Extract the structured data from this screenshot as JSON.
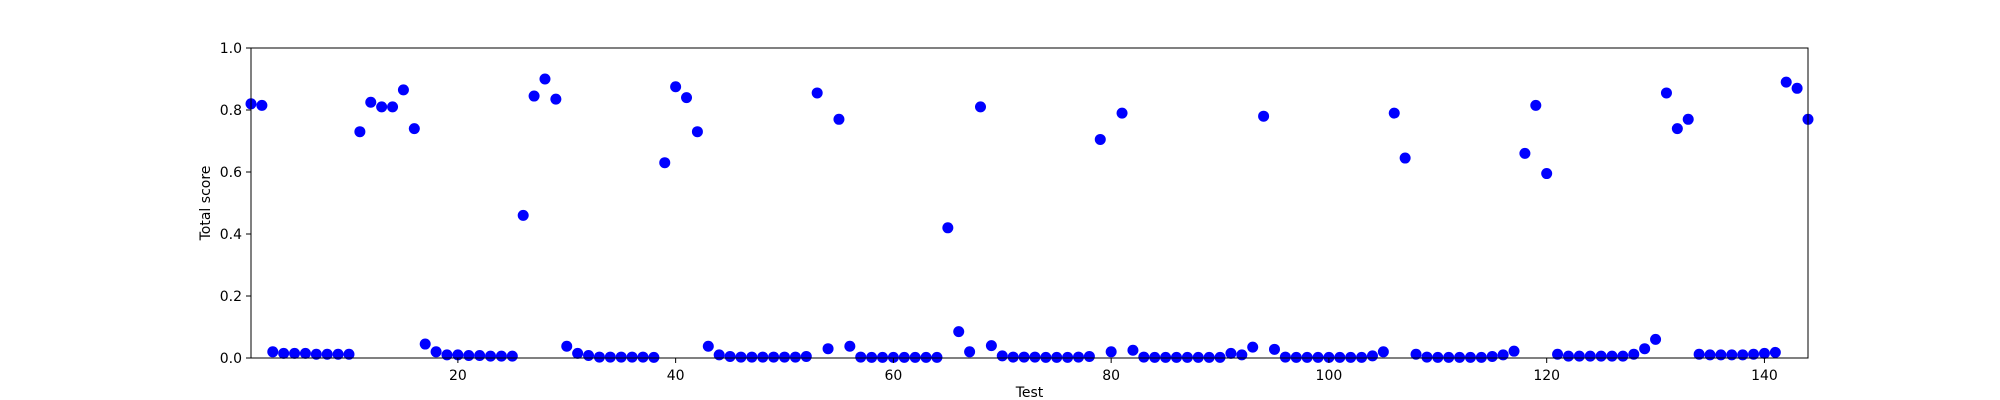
{
  "chart_data": {
    "type": "scatter",
    "xlabel": "Test",
    "ylabel": "Total score",
    "xlim": [
      1,
      144
    ],
    "ylim": [
      0.0,
      1.0
    ],
    "xticks": [
      20,
      40,
      60,
      80,
      100,
      120,
      140
    ],
    "xtick_labels": [
      "20",
      "40",
      "60",
      "80",
      "100",
      "120",
      "140"
    ],
    "yticks": [
      0.0,
      0.2,
      0.4,
      0.6,
      0.8,
      1.0
    ],
    "ytick_labels": [
      "0.0",
      "0.2",
      "0.4",
      "0.6",
      "0.8",
      "1.0"
    ],
    "grid": false,
    "series": [
      {
        "color": "#0000ff",
        "marker": "circle",
        "x": [
          1,
          2,
          3,
          4,
          5,
          6,
          7,
          8,
          9,
          10,
          11,
          12,
          13,
          14,
          15,
          16,
          17,
          18,
          19,
          20,
          21,
          22,
          23,
          24,
          25,
          26,
          27,
          28,
          29,
          30,
          31,
          32,
          33,
          34,
          35,
          36,
          37,
          38,
          39,
          40,
          41,
          42,
          43,
          44,
          45,
          46,
          47,
          48,
          49,
          50,
          51,
          52,
          53,
          54,
          55,
          56,
          57,
          58,
          59,
          60,
          61,
          62,
          63,
          64,
          65,
          66,
          67,
          68,
          69,
          70,
          71,
          72,
          73,
          74,
          75,
          76,
          77,
          78,
          79,
          80,
          81,
          82,
          83,
          84,
          85,
          86,
          87,
          88,
          89,
          90,
          91,
          92,
          93,
          94,
          95,
          96,
          97,
          98,
          99,
          100,
          101,
          102,
          103,
          104,
          105,
          106,
          107,
          108,
          109,
          110,
          111,
          112,
          113,
          114,
          115,
          116,
          117,
          118,
          119,
          120,
          121,
          122,
          123,
          124,
          125,
          126,
          127,
          128,
          129,
          130,
          131,
          132,
          133,
          134,
          135,
          136,
          137,
          138,
          139,
          140,
          141,
          142,
          143,
          144
        ],
        "y": [
          0.82,
          0.815,
          0.02,
          0.015,
          0.015,
          0.015,
          0.012,
          0.012,
          0.012,
          0.012,
          0.73,
          0.825,
          0.81,
          0.81,
          0.865,
          0.74,
          0.045,
          0.02,
          0.01,
          0.01,
          0.008,
          0.008,
          0.006,
          0.006,
          0.006,
          0.46,
          0.845,
          0.9,
          0.835,
          0.038,
          0.015,
          0.008,
          0.003,
          0.003,
          0.003,
          0.003,
          0.003,
          0.002,
          0.63,
          0.875,
          0.84,
          0.73,
          0.038,
          0.01,
          0.005,
          0.003,
          0.003,
          0.003,
          0.003,
          0.003,
          0.003,
          0.005,
          0.855,
          0.03,
          0.77,
          0.038,
          0.003,
          0.002,
          0.002,
          0.002,
          0.002,
          0.002,
          0.002,
          0.002,
          0.42,
          0.085,
          0.02,
          0.81,
          0.04,
          0.007,
          0.003,
          0.003,
          0.003,
          0.002,
          0.002,
          0.002,
          0.003,
          0.005,
          0.705,
          0.02,
          0.79,
          0.025,
          0.003,
          0.002,
          0.002,
          0.002,
          0.002,
          0.002,
          0.002,
          0.002,
          0.015,
          0.01,
          0.035,
          0.78,
          0.028,
          0.003,
          0.002,
          0.002,
          0.002,
          0.002,
          0.002,
          0.002,
          0.002,
          0.007,
          0.02,
          0.79,
          0.645,
          0.012,
          0.003,
          0.002,
          0.002,
          0.002,
          0.002,
          0.002,
          0.005,
          0.01,
          0.022,
          0.66,
          0.815,
          0.595,
          0.012,
          0.006,
          0.006,
          0.006,
          0.006,
          0.006,
          0.006,
          0.012,
          0.03,
          0.06,
          0.855,
          0.74,
          0.77,
          0.012,
          0.01,
          0.01,
          0.01,
          0.01,
          0.012,
          0.015,
          0.018,
          0.89,
          0.87,
          0.77
        ]
      }
    ]
  }
}
